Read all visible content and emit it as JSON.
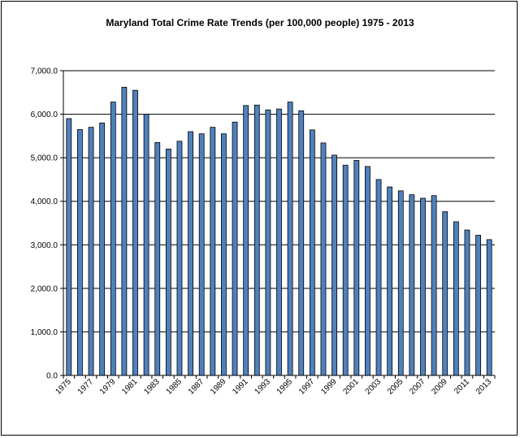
{
  "chart_data": {
    "type": "bar",
    "title": "Maryland Total Crime Rate Trends (per 100,000 people)  1975 - 2013",
    "xlabel": "",
    "ylabel": "",
    "ylim": [
      0,
      7000
    ],
    "yticks": [
      0,
      1000,
      2000,
      3000,
      4000,
      5000,
      6000,
      7000
    ],
    "ytick_labels": [
      "0.0",
      "1,000.0",
      "2,000.0",
      "3,000.0",
      "4,000.0",
      "5,000.0",
      "6,000.0",
      "7,000.0"
    ],
    "grid": true,
    "legend": "none",
    "bar_color": "#4f81bd",
    "categories": [
      "1975",
      "1976",
      "1977",
      "1978",
      "1979",
      "1980",
      "1981",
      "1982",
      "1983",
      "1984",
      "1985",
      "1986",
      "1987",
      "1988",
      "1989",
      "1990",
      "1991",
      "1992",
      "1993",
      "1994",
      "1995",
      "1996",
      "1997",
      "1998",
      "1999",
      "2000",
      "2001",
      "2002",
      "2003",
      "2004",
      "2005",
      "2006",
      "2007",
      "2008",
      "2009",
      "2010",
      "2011",
      "2012",
      "2013"
    ],
    "values": [
      5900,
      5650,
      5700,
      5800,
      6280,
      6620,
      6550,
      6000,
      5350,
      5200,
      5380,
      5600,
      5550,
      5700,
      5550,
      5820,
      6200,
      6210,
      6100,
      6120,
      6280,
      6080,
      5640,
      5340,
      5060,
      4830,
      4940,
      4800,
      4500,
      4330,
      4240,
      4150,
      4070,
      4130,
      3760,
      3530,
      3340,
      3220,
      3120
    ],
    "x_tick_labels": [
      "1975",
      "1977",
      "1979",
      "1981",
      "1983",
      "1985",
      "1987",
      "1989",
      "1991",
      "1993",
      "1995",
      "1997",
      "1999",
      "2001",
      "2003",
      "2005",
      "2007",
      "2009",
      "2011",
      "2013"
    ]
  }
}
